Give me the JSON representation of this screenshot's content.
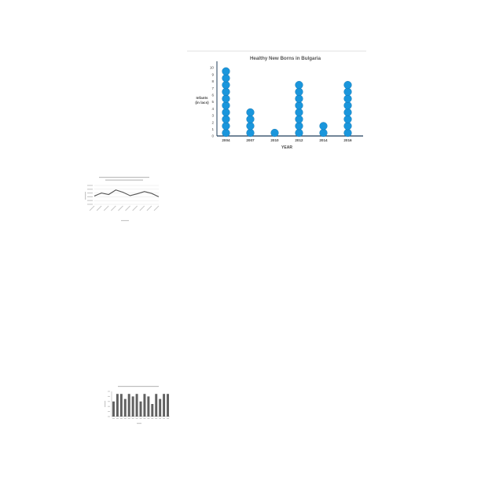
{
  "chart_data": [
    {
      "type": "pictograph",
      "title": "Healthy New Borns in Bulgaria",
      "xlabel": "YEAR",
      "ylabel_lines": [
        "Infants",
        "(in lacs)"
      ],
      "categories": [
        "2004",
        "2007",
        "2010",
        "2012",
        "2014",
        "2016"
      ],
      "values": [
        10,
        4,
        1,
        8,
        2,
        8
      ],
      "ylim": [
        0,
        10
      ],
      "yticks": [
        0,
        1,
        2,
        3,
        4,
        5,
        6,
        7,
        8,
        9,
        10
      ],
      "grid": false,
      "legend": "none",
      "colors": {
        "dot": "#1a96dc",
        "dot_edge": "#0f6fa8",
        "axis": "#1f3c5a"
      }
    },
    {
      "type": "line",
      "title": "",
      "xlabel": "",
      "ylabel": "",
      "x": [
        "",
        "",
        "",
        "",
        "",
        "",
        "",
        "",
        "",
        ""
      ],
      "values": [
        2.2,
        3.0,
        2.6,
        3.8,
        3.2,
        2.3,
        2.8,
        3.4,
        2.9,
        2.0
      ],
      "ylim": [
        0,
        5
      ],
      "grid": true,
      "colors": {
        "line": "#555555",
        "grid": "#e6e6e6"
      }
    },
    {
      "type": "bar",
      "title": "",
      "xlabel": "",
      "ylabel": "",
      "categories": [
        "",
        "",
        "",
        "",
        "",
        "",
        "",
        "",
        "",
        "",
        "",
        "",
        "",
        "",
        ""
      ],
      "values": [
        6,
        9,
        9,
        7,
        9,
        8,
        9,
        6,
        9,
        8,
        5,
        9,
        7,
        9,
        9
      ],
      "ylim": [
        0,
        10
      ],
      "grid": false,
      "colors": {
        "bar": "#616161"
      }
    }
  ]
}
